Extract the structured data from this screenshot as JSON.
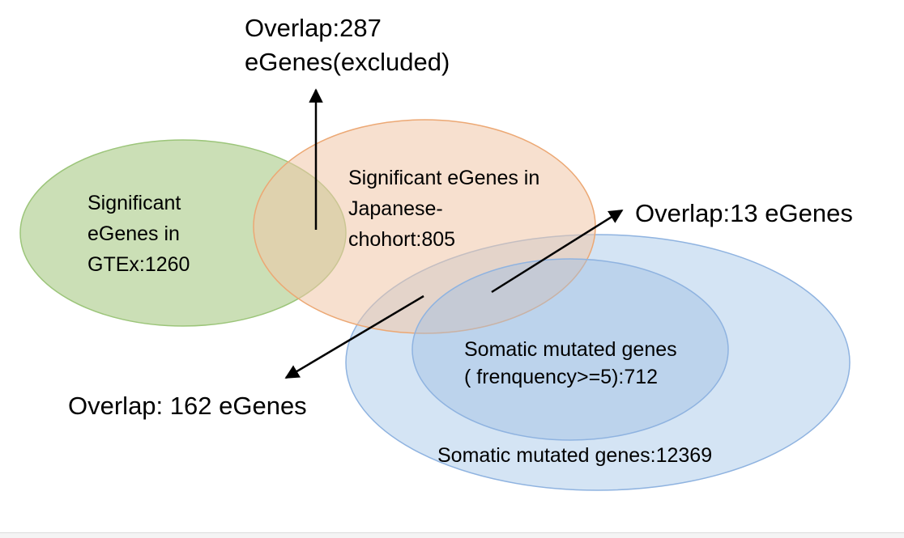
{
  "diagram": {
    "sets": {
      "gtex": {
        "lines": [
          "Significant",
          "eGenes in",
          "GTEx:1260"
        ],
        "fill": "#c5dcae",
        "stroke": "#9cc57a"
      },
      "japanese": {
        "lines": [
          "Significant eGenes in",
          "Japanese-",
          "chohort:805"
        ],
        "fill": "#f3d5c0",
        "stroke": "#eca874"
      },
      "somatic_all": {
        "label": "Somatic mutated genes:12369",
        "fill": "#ccdff2",
        "stroke": "#8fb3e0"
      },
      "somatic_freq": {
        "lines": [
          "Somatic mutated genes",
          "( frenquency>=5):712"
        ],
        "fill": "#b3cde8",
        "stroke": "#8fb3e0"
      }
    },
    "annotations": {
      "overlap_gtex_japanese": [
        "Overlap:287",
        "eGenes(excluded)"
      ],
      "overlap_japanese_somatic": "Overlap:13 eGenes",
      "overlap_japanese_somatic_all": "Overlap: 162 eGenes"
    }
  }
}
